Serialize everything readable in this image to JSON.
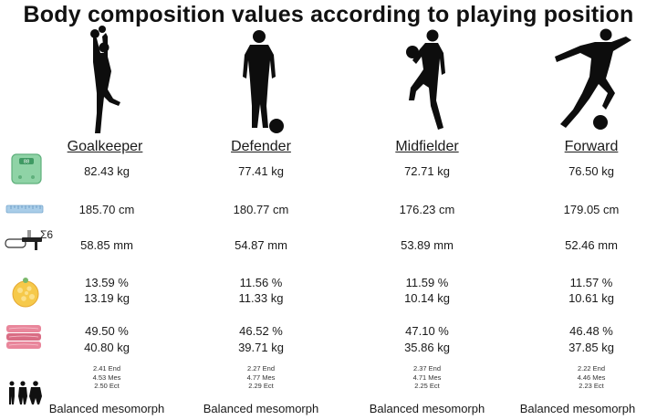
{
  "title": "Body composition values according to playing position",
  "icons": {
    "scale": "weighing-scale-icon",
    "height": "tape-measure-icon",
    "skinfold": "skinfold-caliper-icon",
    "fat": "fat-mass-icon",
    "muscle": "muscle-mass-icon",
    "somatotype": "body-type-figures-icon"
  },
  "skinfold_label": "Σ6",
  "positions": [
    {
      "name": "Goalkeeper",
      "weight": "82.43 kg",
      "height": "185.70 cm",
      "skinfolds": "58.85 mm",
      "fat_pct": "13.59 %",
      "fat_kg": "13.19 kg",
      "muscle_pct": "49.50 %",
      "muscle_kg": "40.80 kg",
      "endo": "2.41 End",
      "meso": "4.53 Mes",
      "ecto": "2.50 Ect",
      "somatotype": "Balanced mesomorph"
    },
    {
      "name": "Defender",
      "weight": "77.41 kg",
      "height": "180.77 cm",
      "skinfolds": "54.87 mm",
      "fat_pct": "11.56 %",
      "fat_kg": "11.33 kg",
      "muscle_pct": "46.52 %",
      "muscle_kg": "39.71 kg",
      "endo": "2.27 End",
      "meso": "4.77 Mes",
      "ecto": "2.29 Ect",
      "somatotype": "Balanced mesomorph"
    },
    {
      "name": "Midfielder",
      "weight": "72.71 kg",
      "height": "176.23 cm",
      "skinfolds": "53.89 mm",
      "fat_pct": "11.59 %",
      "fat_kg": "10.14 kg",
      "muscle_pct": "47.10 %",
      "muscle_kg": "35.86 kg",
      "endo": "2.37 End",
      "meso": "4.71 Mes",
      "ecto": "2.25 Ect",
      "somatotype": "Balanced mesomorph"
    },
    {
      "name": "Forward",
      "weight": "76.50 kg",
      "height": "179.05 cm",
      "skinfolds": "52.46 mm",
      "fat_pct": "11.57 %",
      "fat_kg": "10.61 kg",
      "muscle_pct": "46.48 %",
      "muscle_kg": "37.85 kg",
      "endo": "2.22 End",
      "meso": "4.46 Mes",
      "ecto": "2.23 Ect",
      "somatotype": "Balanced mesomorph"
    }
  ]
}
